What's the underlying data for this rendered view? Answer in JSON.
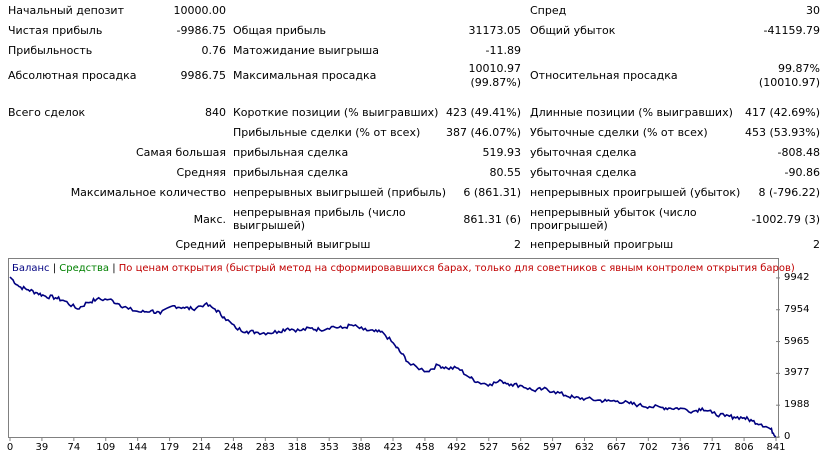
{
  "report": {
    "r1": {
      "l1": "Начальный депозит",
      "v1": "10000.00",
      "l3": "Спред",
      "v3": "30"
    },
    "r2": {
      "l1": "Чистая прибыль",
      "v1": "-9986.75",
      "l2": "Общая прибыль",
      "v2": "31173.05",
      "l3": "Общий убыток",
      "v3": "-41159.79"
    },
    "r3": {
      "l1": "Прибыльность",
      "v1": "0.76",
      "l2": "Матожидание выигрыша",
      "v2": "-11.89"
    },
    "r4": {
      "l1": "Абсолютная просадка",
      "v1": "9986.75",
      "l2": "Максимальная просадка",
      "v2a": "10010.97",
      "v2b": "(99.87%)",
      "l3": "Относительная просадка",
      "v3a": "99.87%",
      "v3b": "(10010.97)"
    },
    "r5": {
      "l1": "Всего сделок",
      "v1": "840",
      "l2": "Короткие позиции (% выигравших)",
      "v2": "423 (49.41%)",
      "l3": "Длинные позиции (% выигравших)",
      "v3": "417 (42.69%)"
    },
    "r6": {
      "l2": "Прибыльные сделки (% от всех)",
      "v2": "387 (46.07%)",
      "l3": "Убыточные сделки (% от всех)",
      "v3": "453 (53.93%)"
    },
    "r7": {
      "l1": "Самая большая",
      "l2": "прибыльная сделка",
      "v2": "519.93",
      "l3": "убыточная сделка",
      "v3": "-808.48"
    },
    "r8": {
      "l1": "Средняя",
      "l2": "прибыльная сделка",
      "v2": "80.55",
      "l3": "убыточная сделка",
      "v3": "-90.86"
    },
    "r9": {
      "l1": "Максимальное количество",
      "l2": "непрерывных выигрышей (прибыль)",
      "v2": "6 (861.31)",
      "l3": "непрерывных проигрышей (убыток)",
      "v3": "8 (-796.22)"
    },
    "r10": {
      "l1": "Макс.",
      "l2": "непрерывная прибыль (число выигрышей)",
      "v2": "861.31 (6)",
      "l3": "непрерывный убыток (число проигрышей)",
      "v3": "-1002.79 (3)"
    },
    "r11": {
      "l1": "Средний",
      "l2": "непрерывный выигрыш",
      "v2": "2",
      "l3": "непрерывный проигрыш",
      "v3": "2"
    }
  },
  "legend": {
    "balance": "Баланс",
    "sep1": " | ",
    "equity": "Средства",
    "sep2": " | ",
    "note": "По ценам открытия (быстрый метод на сформировавшихся барах, только для советников с явным контролем открытия баров)"
  },
  "colors": {
    "balance": "#000080",
    "equity": "#008000",
    "note": "#c00000",
    "line": "#000080"
  },
  "chart_data": {
    "type": "line",
    "yticks": [
      "9942",
      "7954",
      "5965",
      "3977",
      "1988",
      "0"
    ],
    "ytick_values": [
      9942,
      7954,
      5965,
      3977,
      1988,
      0
    ],
    "xticks": [
      "0",
      "39",
      "74",
      "109",
      "144",
      "179",
      "214",
      "248",
      "283",
      "318",
      "353",
      "388",
      "423",
      "458",
      "492",
      "527",
      "562",
      "597",
      "632",
      "667",
      "702",
      "736",
      "771",
      "806",
      "841"
    ],
    "ylim": [
      0,
      10000
    ],
    "xlim": [
      0,
      841
    ],
    "series": [
      {
        "name": "Баланс",
        "x": [
          0,
          10,
          20,
          30,
          39,
          50,
          60,
          74,
          85,
          95,
          109,
          120,
          130,
          144,
          155,
          165,
          179,
          190,
          200,
          214,
          225,
          235,
          248,
          260,
          270,
          283,
          295,
          305,
          318,
          330,
          340,
          353,
          365,
          375,
          388,
          400,
          410,
          423,
          430,
          440,
          458,
          470,
          480,
          492,
          505,
          515,
          527,
          540,
          550,
          562,
          575,
          585,
          597,
          610,
          620,
          632,
          645,
          655,
          667,
          680,
          690,
          702,
          715,
          725,
          736,
          750,
          760,
          771,
          785,
          795,
          806,
          815,
          825,
          835,
          841
        ],
        "y": [
          10000,
          9400,
          9200,
          9000,
          8800,
          8700,
          8500,
          8000,
          8400,
          8600,
          8600,
          8300,
          8000,
          7800,
          7900,
          7700,
          8200,
          8100,
          8000,
          8300,
          8000,
          7500,
          6800,
          6600,
          6550,
          6500,
          6600,
          6800,
          6650,
          6800,
          6700,
          6900,
          6800,
          7000,
          6700,
          6600,
          6500,
          5700,
          5200,
          4500,
          4100,
          4500,
          4300,
          4300,
          3700,
          3400,
          3300,
          3500,
          3300,
          3200,
          2900,
          3000,
          2850,
          2600,
          2450,
          2400,
          2300,
          2250,
          2250,
          2100,
          2000,
          1900,
          1850,
          1800,
          1800,
          1600,
          1800,
          1500,
          1300,
          1250,
          1200,
          1000,
          800,
          500,
          50
        ]
      }
    ]
  }
}
